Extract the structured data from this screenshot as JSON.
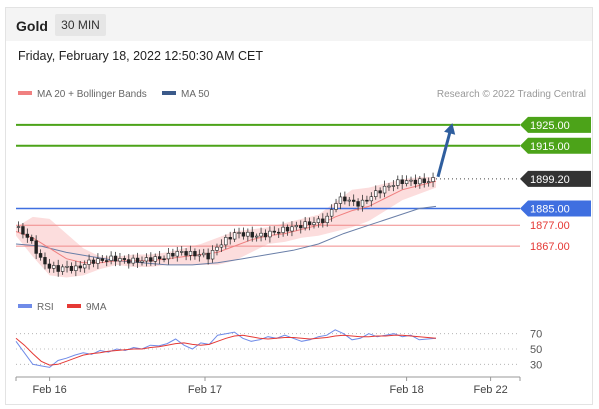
{
  "header": {
    "title": "Gold",
    "timeframe": "30 MIN",
    "datetime": "Friday, February 18, 2022 12:50:30 AM CET"
  },
  "credit": "Research © 2022 Trading Central",
  "colors": {
    "resistance": "#4ca319",
    "support": "#e53935",
    "pivot": "#3f6fe0",
    "last": "#333333",
    "ma20": "#f08080",
    "ma50": "#6a7fa8",
    "bands": "#fbd7d7",
    "rsi": "#6f8be8",
    "rsi_ma": "#e53935",
    "arrow": "#2f5e9e"
  },
  "chart_data": [
    {
      "type": "candlestick",
      "legend": [
        {
          "name": "MA 20 + Bollinger Bands",
          "color": "#f08080"
        },
        {
          "name": "MA 50",
          "color": "#3b5a8a"
        }
      ],
      "levels": [
        {
          "value": 1925.0,
          "label": "1925.00",
          "kind": "resistance"
        },
        {
          "value": 1915.0,
          "label": "1915.00",
          "kind": "resistance"
        },
        {
          "value": 1899.2,
          "label": "1899.20",
          "kind": "last"
        },
        {
          "value": 1885.0,
          "label": "1885.00",
          "kind": "pivot"
        },
        {
          "value": 1877.0,
          "label": "1877.00",
          "kind": "support"
        },
        {
          "value": 1867.0,
          "label": "1867.00",
          "kind": "support"
        }
      ],
      "price_path": [
        [
          0,
          1876
        ],
        [
          2,
          1873
        ],
        [
          4,
          1868
        ],
        [
          6,
          1860
        ],
        [
          8,
          1857
        ],
        [
          10,
          1856
        ],
        [
          12,
          1857
        ],
        [
          14,
          1856
        ],
        [
          16,
          1858
        ],
        [
          18,
          1860
        ],
        [
          20,
          1860
        ],
        [
          22,
          1861
        ],
        [
          24,
          1861
        ],
        [
          26,
          1860
        ],
        [
          28,
          1860
        ],
        [
          30,
          1860
        ],
        [
          32,
          1861
        ],
        [
          34,
          1861
        ],
        [
          36,
          1862
        ],
        [
          38,
          1864
        ],
        [
          40,
          1864
        ],
        [
          42,
          1863
        ],
        [
          44,
          1863
        ],
        [
          46,
          1862
        ],
        [
          48,
          1867
        ],
        [
          50,
          1870
        ],
        [
          52,
          1873
        ],
        [
          54,
          1873
        ],
        [
          56,
          1872
        ],
        [
          58,
          1872
        ],
        [
          60,
          1873
        ],
        [
          62,
          1874
        ],
        [
          64,
          1875
        ],
        [
          66,
          1876
        ],
        [
          68,
          1877
        ],
        [
          70,
          1878
        ],
        [
          72,
          1879
        ],
        [
          74,
          1880
        ],
        [
          76,
          1888
        ],
        [
          78,
          1890
        ],
        [
          80,
          1888
        ],
        [
          82,
          1887
        ],
        [
          84,
          1890
        ],
        [
          86,
          1893
        ],
        [
          88,
          1895
        ],
        [
          90,
          1897
        ],
        [
          92,
          1898
        ],
        [
          94,
          1898
        ],
        [
          96,
          1898
        ],
        [
          98,
          1898
        ],
        [
          100,
          1899.2
        ]
      ],
      "ma20": [
        [
          0,
          1874
        ],
        [
          4,
          1871
        ],
        [
          8,
          1866
        ],
        [
          12,
          1861
        ],
        [
          16,
          1859
        ],
        [
          20,
          1859
        ],
        [
          24,
          1860
        ],
        [
          28,
          1860
        ],
        [
          32,
          1860
        ],
        [
          36,
          1861
        ],
        [
          40,
          1862
        ],
        [
          44,
          1863
        ],
        [
          48,
          1864
        ],
        [
          52,
          1867
        ],
        [
          56,
          1870
        ],
        [
          60,
          1872
        ],
        [
          64,
          1873
        ],
        [
          68,
          1875
        ],
        [
          72,
          1877
        ],
        [
          76,
          1881
        ],
        [
          80,
          1884
        ],
        [
          84,
          1886
        ],
        [
          88,
          1890
        ],
        [
          92,
          1894
        ],
        [
          96,
          1896
        ],
        [
          100,
          1898
        ]
      ],
      "bb_upper": [
        [
          0,
          1876
        ],
        [
          4,
          1881
        ],
        [
          8,
          1880
        ],
        [
          12,
          1873
        ],
        [
          16,
          1866
        ],
        [
          20,
          1862
        ],
        [
          24,
          1862
        ],
        [
          28,
          1863
        ],
        [
          32,
          1863
        ],
        [
          36,
          1864
        ],
        [
          40,
          1866
        ],
        [
          44,
          1868
        ],
        [
          48,
          1871
        ],
        [
          52,
          1874
        ],
        [
          56,
          1875
        ],
        [
          60,
          1876
        ],
        [
          64,
          1878
        ],
        [
          68,
          1880
        ],
        [
          72,
          1882
        ],
        [
          76,
          1888
        ],
        [
          80,
          1894
        ],
        [
          84,
          1895
        ],
        [
          88,
          1897
        ],
        [
          92,
          1899
        ],
        [
          96,
          1900
        ],
        [
          100,
          1900
        ]
      ],
      "bb_lower": [
        [
          0,
          1872
        ],
        [
          4,
          1862
        ],
        [
          8,
          1853
        ],
        [
          12,
          1852
        ],
        [
          16,
          1853
        ],
        [
          20,
          1856
        ],
        [
          24,
          1858
        ],
        [
          28,
          1857
        ],
        [
          32,
          1857
        ],
        [
          36,
          1858
        ],
        [
          40,
          1858
        ],
        [
          44,
          1858
        ],
        [
          48,
          1858
        ],
        [
          52,
          1860
        ],
        [
          56,
          1864
        ],
        [
          60,
          1868
        ],
        [
          64,
          1869
        ],
        [
          68,
          1871
        ],
        [
          72,
          1872
        ],
        [
          76,
          1874
        ],
        [
          80,
          1876
        ],
        [
          84,
          1879
        ],
        [
          88,
          1884
        ],
        [
          92,
          1889
        ],
        [
          96,
          1892
        ],
        [
          100,
          1895
        ]
      ],
      "ma50": [
        [
          0,
          1868
        ],
        [
          6,
          1867
        ],
        [
          12,
          1864
        ],
        [
          18,
          1862
        ],
        [
          24,
          1860
        ],
        [
          30,
          1859
        ],
        [
          36,
          1858
        ],
        [
          42,
          1858
        ],
        [
          48,
          1859
        ],
        [
          54,
          1861
        ],
        [
          60,
          1863
        ],
        [
          66,
          1865
        ],
        [
          72,
          1868
        ],
        [
          78,
          1873
        ],
        [
          84,
          1877
        ],
        [
          90,
          1881
        ],
        [
          96,
          1885
        ],
        [
          100,
          1886
        ]
      ],
      "projection": [
        [
          100,
          1899.2
        ],
        [
          104,
          1925.0
        ]
      ],
      "ylim": [
        1846,
        1935
      ],
      "xlim": [
        0,
        120
      ]
    },
    {
      "type": "line",
      "legend": [
        {
          "name": "RSI",
          "color": "#6f8be8"
        },
        {
          "name": "9MA",
          "color": "#e53935"
        }
      ],
      "y_ticks": [
        "70",
        "50",
        "30"
      ],
      "ylim": [
        20,
        80
      ],
      "rsi": [
        [
          0,
          60
        ],
        [
          2,
          45
        ],
        [
          4,
          30
        ],
        [
          6,
          28
        ],
        [
          8,
          26
        ],
        [
          10,
          35
        ],
        [
          12,
          38
        ],
        [
          14,
          42
        ],
        [
          16,
          45
        ],
        [
          18,
          43
        ],
        [
          20,
          48
        ],
        [
          22,
          46
        ],
        [
          24,
          50
        ],
        [
          26,
          48
        ],
        [
          28,
          52
        ],
        [
          30,
          50
        ],
        [
          32,
          55
        ],
        [
          34,
          54
        ],
        [
          36,
          57
        ],
        [
          38,
          63
        ],
        [
          40,
          55
        ],
        [
          42,
          50
        ],
        [
          44,
          58
        ],
        [
          46,
          56
        ],
        [
          48,
          68
        ],
        [
          50,
          70
        ],
        [
          52,
          72
        ],
        [
          54,
          64
        ],
        [
          56,
          60
        ],
        [
          58,
          62
        ],
        [
          60,
          66
        ],
        [
          62,
          64
        ],
        [
          64,
          68
        ],
        [
          66,
          64
        ],
        [
          68,
          60
        ],
        [
          70,
          62
        ],
        [
          72,
          66
        ],
        [
          74,
          68
        ],
        [
          76,
          75
        ],
        [
          78,
          70
        ],
        [
          80,
          62
        ],
        [
          82,
          64
        ],
        [
          84,
          70
        ],
        [
          86,
          66
        ],
        [
          88,
          68
        ],
        [
          90,
          70
        ],
        [
          92,
          66
        ],
        [
          94,
          68
        ],
        [
          96,
          62
        ],
        [
          98,
          63
        ],
        [
          100,
          64
        ]
      ],
      "rsi_ma": [
        [
          0,
          64
        ],
        [
          2,
          55
        ],
        [
          4,
          44
        ],
        [
          6,
          34
        ],
        [
          8,
          29
        ],
        [
          10,
          30
        ],
        [
          12,
          34
        ],
        [
          14,
          38
        ],
        [
          16,
          42
        ],
        [
          18,
          44
        ],
        [
          20,
          45
        ],
        [
          22,
          47
        ],
        [
          24,
          48
        ],
        [
          26,
          49
        ],
        [
          28,
          50
        ],
        [
          30,
          50
        ],
        [
          32,
          52
        ],
        [
          34,
          53
        ],
        [
          36,
          55
        ],
        [
          38,
          57
        ],
        [
          40,
          58
        ],
        [
          42,
          56
        ],
        [
          44,
          55
        ],
        [
          46,
          56
        ],
        [
          48,
          60
        ],
        [
          50,
          64
        ],
        [
          52,
          67
        ],
        [
          54,
          68
        ],
        [
          56,
          66
        ],
        [
          58,
          64
        ],
        [
          60,
          63
        ],
        [
          62,
          64
        ],
        [
          64,
          65
        ],
        [
          66,
          65
        ],
        [
          68,
          64
        ],
        [
          70,
          63
        ],
        [
          72,
          64
        ],
        [
          74,
          65
        ],
        [
          76,
          67
        ],
        [
          78,
          68
        ],
        [
          80,
          67
        ],
        [
          82,
          66
        ],
        [
          84,
          66
        ],
        [
          86,
          67
        ],
        [
          88,
          67
        ],
        [
          90,
          68
        ],
        [
          92,
          68
        ],
        [
          94,
          67
        ],
        [
          96,
          66
        ],
        [
          98,
          65
        ],
        [
          100,
          64
        ]
      ]
    }
  ],
  "x_ticks": [
    {
      "x": 8,
      "label": "Feb 16"
    },
    {
      "x": 45,
      "label": "Feb 17"
    },
    {
      "x": 93,
      "label": "Feb 18"
    },
    {
      "x": 113,
      "label": "Feb 22"
    }
  ]
}
